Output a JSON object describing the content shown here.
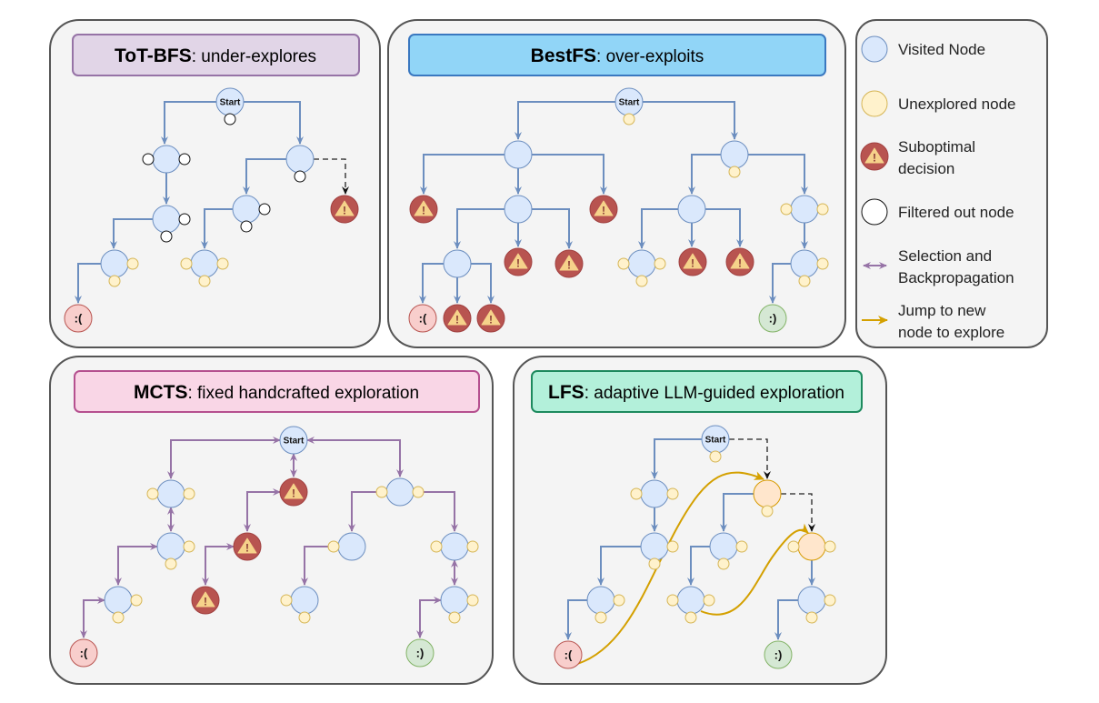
{
  "panels": {
    "tot": {
      "method": "ToT-BFS",
      "desc": ": under-explores",
      "fill": "#e1d5e7",
      "stroke": "#9673a6"
    },
    "bestfs": {
      "method": "BestFS",
      "desc": ": over-exploits",
      "fill": "#91d5f7",
      "stroke": "#3a78c0"
    },
    "mcts": {
      "method": "MCTS",
      "desc": ": fixed handcrafted exploration",
      "fill": "#f9d6e6",
      "stroke": "#b5508f"
    },
    "lfs": {
      "method": "LFS",
      "desc": ": adaptive LLM-guided exploration",
      "fill": "#b3f0da",
      "stroke": "#1d8a5e"
    }
  },
  "node_labels": {
    "start": "Start",
    "sad": ":(",
    "happy": ":)",
    "warning": "!"
  },
  "legend": {
    "visited": "Visited Node",
    "unexplored": "Unexplored node",
    "suboptimal_1": "Suboptimal",
    "suboptimal_2": "decision",
    "filtered": "Filtered out node",
    "selection_1": "Selection and",
    "selection_2": "Backpropagation",
    "jump_1": "Jump to new",
    "jump_2": "node to explore"
  },
  "colors": {
    "visited": "#dae8fc",
    "visited_stroke": "#6c8ebf",
    "unexplored": "#fff2cc",
    "unexplored_stroke": "#d6b656",
    "orange": "#ffe6cc",
    "orange_stroke": "#d79b00",
    "suboptimal": "#b85450",
    "sad": "#f8cecc",
    "happy": "#d5e8d4",
    "selection": "#9673a6",
    "jump": "#d4a000"
  }
}
